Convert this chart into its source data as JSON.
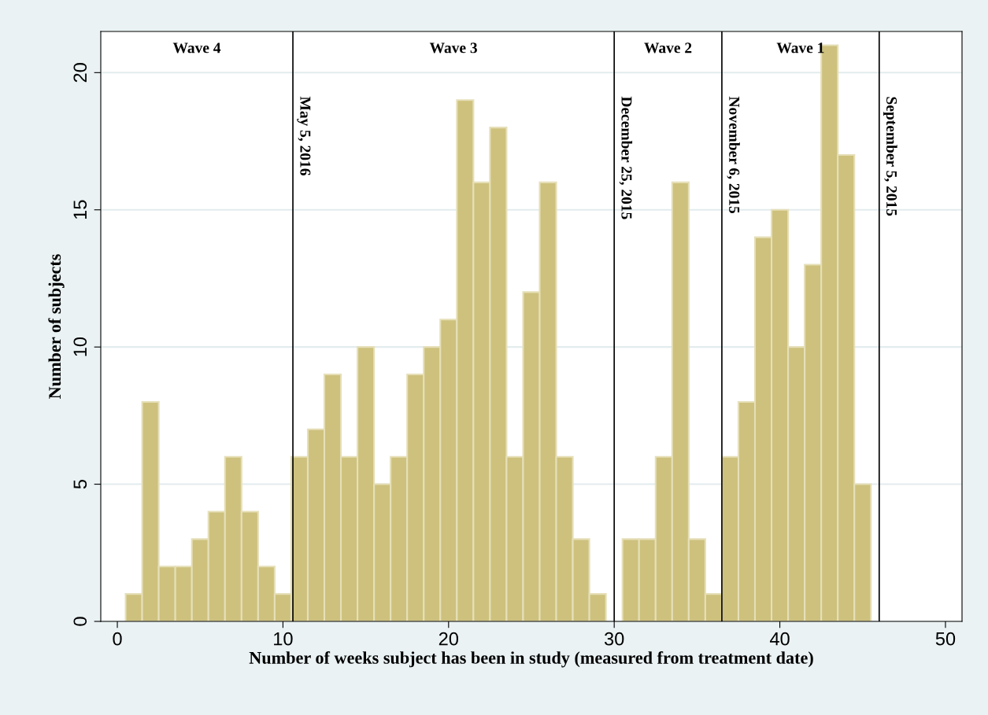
{
  "chart_data": {
    "type": "histogram",
    "xlabel": "Number of weeks subject has been in study (measured from treatment date)",
    "ylabel": "Number of subjects",
    "bins": [
      0.5,
      1.5,
      2.5,
      3.5,
      4.5,
      5.5,
      6.5,
      7.5,
      8.5,
      9.5,
      10.5,
      11.5,
      12.5,
      13.5,
      14.5,
      15.5,
      16.5,
      17.5,
      18.5,
      19.5,
      20.5,
      21.5,
      22.5,
      23.5,
      24.5,
      25.5,
      26.5,
      27.5,
      28.5,
      29.5,
      30.5,
      31.5,
      32.5,
      33.5,
      34.5,
      35.5,
      36.5,
      37.5,
      38.5,
      39.5,
      40.5,
      41.5,
      42.5,
      43.5,
      44.5,
      45.5
    ],
    "values": [
      1,
      8,
      2,
      2,
      3,
      4,
      6,
      4,
      2,
      1,
      6,
      7,
      9,
      6,
      10,
      5,
      6,
      9,
      10,
      11,
      19,
      16,
      18,
      6,
      12,
      16,
      6,
      3,
      1,
      0,
      3,
      3,
      6,
      16,
      3,
      1,
      6,
      8,
      14,
      15,
      10,
      13,
      21,
      17,
      5
    ],
    "color": "#cdc17d",
    "xlim": [
      -1,
      51
    ],
    "xticks": [
      0,
      10,
      20,
      30,
      40,
      50
    ],
    "ylim": [
      0,
      21.5
    ],
    "yticks": [
      0,
      5,
      10,
      15,
      20
    ],
    "grid": "y",
    "ref_lines": [
      {
        "axis": "x",
        "value": 10.6,
        "label": "May 5, 2016",
        "color": "#000000"
      },
      {
        "axis": "x",
        "value": 30,
        "label": "December 25, 2015",
        "color": "#000000"
      },
      {
        "axis": "x",
        "value": 36.5,
        "label": "November 6, 2015",
        "color": "#000000"
      },
      {
        "axis": "x",
        "value": 46,
        "label": "September 5, 2015",
        "color": "#000000"
      }
    ],
    "annotations": [
      "Wave 4",
      "Wave 3",
      "Wave 2",
      "Wave 1"
    ]
  }
}
